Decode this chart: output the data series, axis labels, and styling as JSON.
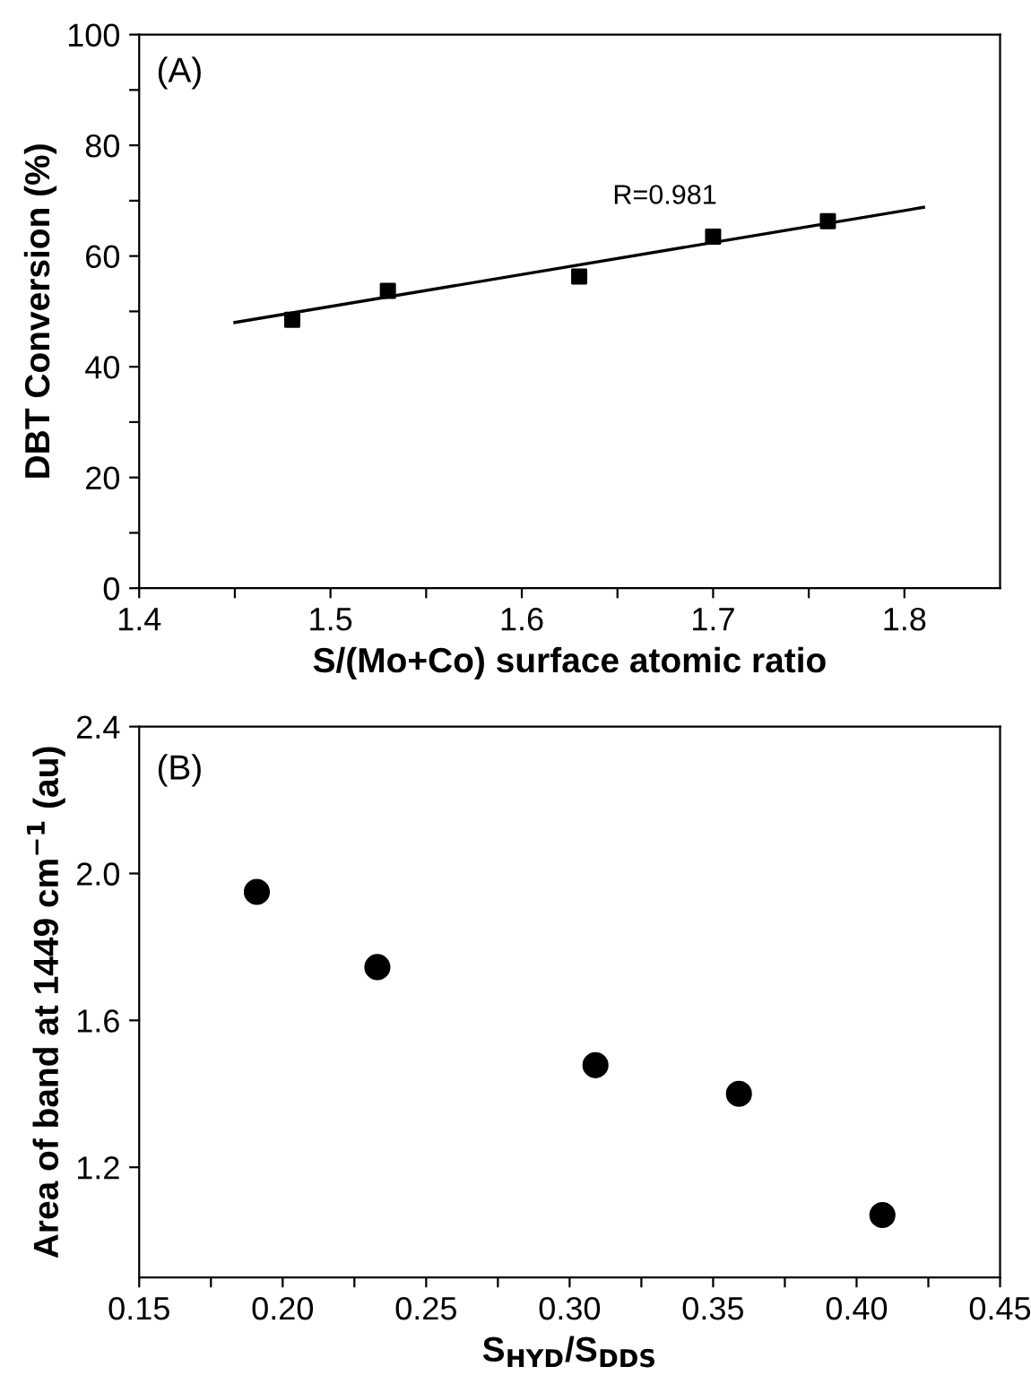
{
  "chart_data": [
    {
      "type": "scatter",
      "xlabel": "S/(Mo+Co) surface atomic ratio",
      "ylabel": "DBT Conversion (%)",
      "annotations": [
        "(A)",
        "R=0.981"
      ],
      "series": [
        {
          "color": "#000000",
          "marker": "square",
          "x": [
            1.48,
            1.53,
            1.63,
            1.7,
            1.76
          ],
          "values": [
            48.5,
            53.7,
            56.3,
            63.5,
            66.3
          ]
        },
        {
          "type": "line",
          "color": "#000000",
          "marker": "none",
          "line_style": "solid",
          "x": [
            1.45,
            1.81
          ],
          "values": [
            48.0,
            68.8
          ]
        }
      ],
      "xlim": [
        1.4,
        1.85
      ],
      "xticks": [
        1.4,
        {
          "value": 1.45,
          "label": null
        },
        1.5,
        {
          "value": 1.55,
          "label": null
        },
        1.6,
        {
          "value": 1.65,
          "label": null
        },
        1.7,
        {
          "value": 1.75,
          "label": null
        },
        1.8
      ],
      "ylim": [
        0,
        100
      ],
      "yticks": [
        0,
        {
          "value": 10,
          "label": null
        },
        20,
        {
          "value": 30,
          "label": null
        },
        40,
        {
          "value": 50,
          "label": null
        },
        60,
        {
          "value": 70,
          "label": null
        },
        80,
        {
          "value": 90,
          "label": null
        },
        100
      ],
      "grid": false,
      "legend": false
    },
    {
      "type": "scatter",
      "xlabel": "S$_{HYD}$/S$_{DDS}$",
      "ylabel": "Area of band at 1449 cm$^{−1}$ (au)",
      "annotations": [
        "(B)"
      ],
      "series": [
        {
          "color": "#000000",
          "marker": "circle",
          "x": [
            0.191,
            0.233,
            0.309,
            0.359,
            0.409
          ],
          "values": [
            1.95,
            1.745,
            1.478,
            1.4,
            1.07
          ]
        }
      ],
      "xlim": [
        0.15,
        0.45
      ],
      "xticks": [
        0.15,
        {
          "value": 0.175,
          "label": null
        },
        {
          "value": 0.2,
          "label": "0.20"
        },
        {
          "value": 0.225,
          "label": null
        },
        0.25,
        {
          "value": 0.275,
          "label": null
        },
        {
          "value": 0.3,
          "label": "0.30"
        },
        {
          "value": 0.325,
          "label": null
        },
        0.35,
        {
          "value": 0.375,
          "label": null
        },
        {
          "value": 0.4,
          "label": "0.40"
        },
        {
          "value": 0.425,
          "label": null
        },
        0.45
      ],
      "ylim": [
        0.9,
        2.4
      ],
      "yticks": [
        1.2,
        1.6,
        {
          "value": 2.0,
          "label": "2.0"
        },
        2.4
      ],
      "grid": false,
      "legend": false
    }
  ]
}
